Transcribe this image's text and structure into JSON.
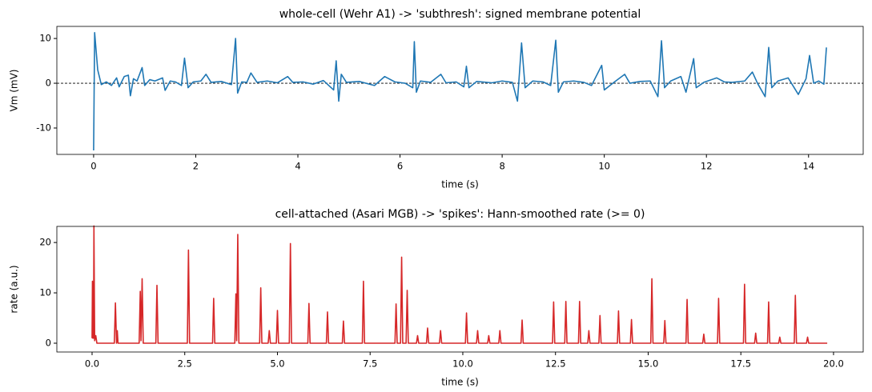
{
  "chart_data": [
    {
      "type": "line",
      "title": "whole-cell (Wehr A1) -> 'subthresh': signed membrane potential",
      "xlabel": "time (s)",
      "ylabel": "Vm (mV)",
      "color": "#1f77b4",
      "xlim": [
        -0.72,
        15.07
      ],
      "ylim": [
        -15.9,
        12.7
      ],
      "xticks": [
        0,
        2,
        4,
        6,
        8,
        10,
        12,
        14
      ],
      "yticks": [
        -10,
        0,
        10
      ],
      "hline": 0,
      "x": [
        0,
        0.02,
        0.08,
        0.15,
        0.25,
        0.35,
        0.45,
        0.5,
        0.6,
        0.68,
        0.72,
        0.78,
        0.85,
        0.95,
        1.0,
        1.1,
        1.2,
        1.35,
        1.4,
        1.5,
        1.6,
        1.72,
        1.78,
        1.85,
        1.95,
        2.1,
        2.2,
        2.3,
        2.5,
        2.7,
        2.78,
        2.82,
        2.9,
        3.0,
        3.08,
        3.2,
        3.4,
        3.6,
        3.8,
        3.9,
        4.1,
        4.3,
        4.5,
        4.7,
        4.75,
        4.8,
        4.85,
        4.95,
        5.2,
        5.5,
        5.7,
        5.9,
        6.1,
        6.25,
        6.28,
        6.32,
        6.4,
        6.6,
        6.8,
        6.9,
        7.1,
        7.25,
        7.3,
        7.35,
        7.5,
        7.8,
        8.0,
        8.2,
        8.3,
        8.38,
        8.45,
        8.6,
        8.8,
        8.95,
        9.05,
        9.1,
        9.2,
        9.4,
        9.6,
        9.75,
        9.95,
        10.0,
        10.2,
        10.4,
        10.5,
        10.7,
        10.9,
        11.05,
        11.12,
        11.18,
        11.3,
        11.5,
        11.6,
        11.75,
        11.8,
        11.95,
        12.2,
        12.35,
        12.5,
        12.75,
        12.9,
        13.0,
        13.15,
        13.22,
        13.28,
        13.4,
        13.6,
        13.8,
        13.95,
        14.02,
        14.1,
        14.2,
        14.3,
        14.35
      ],
      "values": [
        -15,
        11.3,
        3,
        -0.3,
        0.3,
        -0.5,
        1.2,
        -0.8,
        1.5,
        1.8,
        -2.8,
        1,
        0.5,
        3.5,
        -0.5,
        0.8,
        0.5,
        1.2,
        -1.6,
        0.5,
        0.3,
        -0.5,
        5.6,
        -1,
        0.3,
        0.5,
        2,
        0.2,
        0.4,
        -0.3,
        10,
        -2.2,
        0.3,
        0.2,
        2.3,
        0.2,
        0.5,
        0.1,
        1.5,
        0.2,
        0.3,
        -0.2,
        0.6,
        -1.5,
        5,
        -4,
        2,
        0.2,
        0.4,
        -0.5,
        1.5,
        0.3,
        0,
        -1,
        9.3,
        -2,
        0.5,
        0.2,
        2,
        0.1,
        0.3,
        -0.8,
        3.8,
        -1,
        0.4,
        0.1,
        0.5,
        0.2,
        -4,
        9,
        -1,
        0.5,
        0.3,
        -0.5,
        9.6,
        -2,
        0.3,
        0.5,
        0.2,
        -0.5,
        4,
        -1.5,
        0.3,
        2,
        0,
        0.4,
        0.5,
        -3,
        9.5,
        -1,
        0.5,
        1.5,
        -2,
        5.5,
        -1,
        0.2,
        1.2,
        0.3,
        0.2,
        0.5,
        2.5,
        0,
        -3,
        8,
        -1,
        0.5,
        1.2,
        -2.5,
        1,
        6.2,
        0,
        0.5,
        -0.2,
        8
      ]
    },
    {
      "type": "line",
      "title": "cell-attached (Asari MGB) -> 'spikes': Hann-smoothed rate (>= 0)",
      "xlabel": "time (s)",
      "ylabel": "rate (a.u.)",
      "color": "#d62728",
      "xlim": [
        -0.95,
        20.8
      ],
      "ylim": [
        -1.75,
        23.2
      ],
      "xticks": [
        {
          "value": 0,
          "label": "0.0"
        },
        {
          "value": 2.5,
          "label": "2.5"
        },
        {
          "value": 5,
          "label": "5.0"
        },
        {
          "value": 7.5,
          "label": "7.5"
        },
        {
          "value": 10,
          "label": "10.0"
        },
        {
          "value": 12.5,
          "label": "12.5"
        },
        {
          "value": 15,
          "label": "15.0"
        },
        {
          "value": 17.5,
          "label": "17.5"
        },
        {
          "value": 20,
          "label": "20.0"
        }
      ],
      "yticks": [
        0,
        10,
        20
      ],
      "x": [
        0,
        0.01,
        0.02,
        0.04,
        0.05,
        0.07,
        0.1,
        0.13,
        0.6,
        0.63,
        0.66,
        0.68,
        0.7,
        1.27,
        1.3,
        1.32,
        1.35,
        1.38,
        1.72,
        1.75,
        1.78,
        2.57,
        2.6,
        2.63,
        3.25,
        3.28,
        3.31,
        3.85,
        3.88,
        3.9,
        3.93,
        3.96,
        4.52,
        4.55,
        4.58,
        4.75,
        4.78,
        4.81,
        4.97,
        5.0,
        5.03,
        5.32,
        5.35,
        5.38,
        5.82,
        5.85,
        5.88,
        6.32,
        6.35,
        6.38,
        6.75,
        6.78,
        6.81,
        7.29,
        7.32,
        7.35,
        8.17,
        8.2,
        8.23,
        8.32,
        8.35,
        8.38,
        8.47,
        8.5,
        8.53,
        8.75,
        8.78,
        8.81,
        9.02,
        9.05,
        9.08,
        9.37,
        9.4,
        9.43,
        10.07,
        10.1,
        10.13,
        10.37,
        10.4,
        10.43,
        10.67,
        10.7,
        10.73,
        10.97,
        11,
        11.03,
        11.57,
        11.6,
        11.63,
        12.42,
        12.45,
        12.48,
        12.75,
        12.78,
        12.81,
        13.12,
        13.15,
        13.18,
        13.37,
        13.4,
        13.43,
        13.67,
        13.7,
        13.73,
        14.17,
        14.2,
        14.23,
        14.52,
        14.55,
        14.58,
        15.07,
        15.1,
        15.13,
        15.42,
        15.45,
        15.48,
        16.02,
        16.05,
        16.08,
        16.47,
        16.5,
        16.53,
        16.87,
        16.9,
        16.93,
        17.57,
        17.6,
        17.63,
        17.87,
        17.9,
        17.93,
        18.22,
        18.25,
        18.28,
        18.52,
        18.55,
        18.58,
        18.94,
        18.97,
        19,
        19.27,
        19.3,
        19.33,
        19.83
      ],
      "values": [
        1,
        12.3,
        1,
        1,
        23.3,
        0.5,
        1.5,
        0,
        0,
        8,
        0,
        2.5,
        0,
        0,
        10.3,
        0.5,
        12.8,
        0,
        0,
        11.5,
        0,
        0,
        18.5,
        0,
        0,
        8.9,
        0,
        0,
        9.8,
        0.5,
        21.6,
        0,
        0,
        11,
        0,
        0,
        2.5,
        0,
        0,
        6.5,
        0,
        0,
        19.8,
        0,
        0,
        7.9,
        0,
        0,
        6.2,
        0,
        0,
        4.4,
        0,
        0,
        12.3,
        0,
        0,
        7.8,
        0,
        0,
        17.1,
        0,
        0,
        10.5,
        0,
        0,
        1.5,
        0,
        0,
        3,
        0,
        0,
        2.5,
        0,
        0,
        6,
        0,
        0,
        2.5,
        0,
        0,
        1.5,
        0,
        0,
        2.5,
        0,
        0,
        4.6,
        0,
        0,
        8.2,
        0,
        0,
        8.3,
        0,
        0,
        8.3,
        0,
        0,
        2.5,
        0,
        0,
        5.5,
        0,
        0,
        6.4,
        0,
        0,
        4.7,
        0,
        0,
        12.8,
        0,
        0,
        4.5,
        0,
        0,
        8.7,
        0,
        0,
        1.8,
        0,
        0,
        8.9,
        0,
        0,
        11.7,
        0,
        0,
        2,
        0,
        0,
        8.2,
        0,
        0,
        1.2,
        0,
        0,
        9.5,
        0,
        0,
        1.2,
        0,
        0
      ]
    }
  ]
}
